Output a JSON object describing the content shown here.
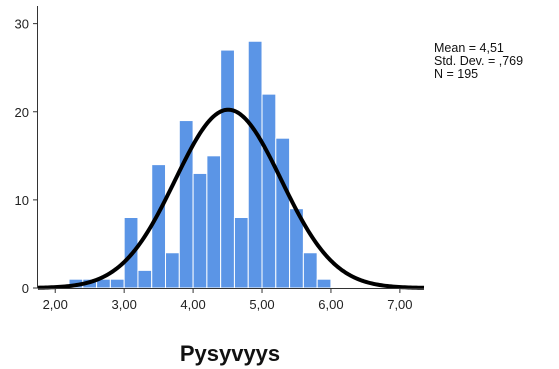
{
  "chart_data": {
    "type": "bar",
    "title": "",
    "xlabel": "Pysyvyys",
    "ylabel": "",
    "xlim": [
      1.75,
      7.35
    ],
    "ylim": [
      0,
      32
    ],
    "bin_width": 0.2,
    "x_ticks": [
      2,
      3,
      4,
      5,
      6,
      7
    ],
    "x_tick_labels": [
      "2,00",
      "3,00",
      "4,00",
      "5,00",
      "6,00",
      "7,00"
    ],
    "y_ticks": [
      0,
      10,
      20,
      30
    ],
    "y_tick_labels": [
      "0",
      "10",
      "20",
      "30"
    ],
    "grid": false,
    "legend": "none",
    "bins": [
      {
        "start": 2.2,
        "count": 1
      },
      {
        "start": 2.4,
        "count": 1
      },
      {
        "start": 2.6,
        "count": 1
      },
      {
        "start": 2.8,
        "count": 1
      },
      {
        "start": 3.0,
        "count": 8
      },
      {
        "start": 3.2,
        "count": 2
      },
      {
        "start": 3.4,
        "count": 14
      },
      {
        "start": 3.6,
        "count": 4
      },
      {
        "start": 3.8,
        "count": 19
      },
      {
        "start": 4.0,
        "count": 13
      },
      {
        "start": 4.2,
        "count": 15
      },
      {
        "start": 4.4,
        "count": 27
      },
      {
        "start": 4.6,
        "count": 8
      },
      {
        "start": 4.8,
        "count": 28
      },
      {
        "start": 5.0,
        "count": 22
      },
      {
        "start": 5.2,
        "count": 17
      },
      {
        "start": 5.4,
        "count": 9
      },
      {
        "start": 5.6,
        "count": 4
      },
      {
        "start": 5.8,
        "count": 1
      }
    ],
    "normal_curve": {
      "mean": 4.51,
      "sd": 0.769,
      "n": 195
    },
    "stats_labels": [
      "Mean = 4,51",
      "Std. Dev. = ,769",
      "N = 195"
    ],
    "colors": {
      "bar_fill": "#5b95e6",
      "bar_stroke": "#ffffff",
      "curve": "#000000",
      "axis": "#333333"
    }
  }
}
